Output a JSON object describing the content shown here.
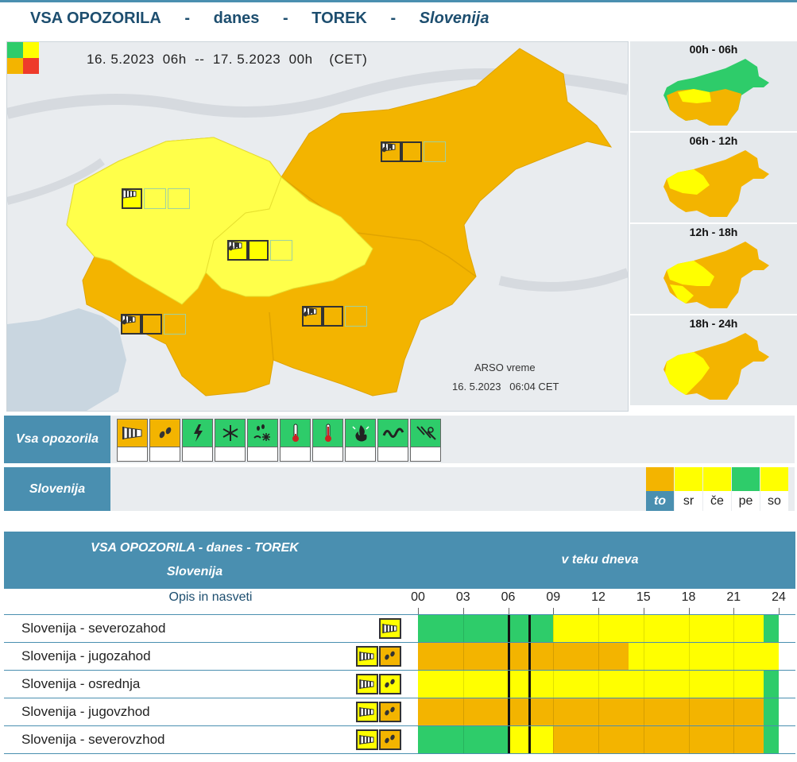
{
  "header": {
    "title": "VSA OPOZORILA",
    "sep": "-",
    "day_word": "danes",
    "weekday": "TOREK",
    "region": "Slovenija"
  },
  "map": {
    "date_range": "16. 5.2023  06h  --  17. 5.2023  00h    (CET)",
    "credit": "ARSO vreme",
    "issued": "16. 5.2023   06:04 CET"
  },
  "thumbnails": [
    {
      "label": "00h - 06h"
    },
    {
      "label": "06h - 12h"
    },
    {
      "label": "12h - 18h"
    },
    {
      "label": "18h - 24h"
    }
  ],
  "warning_types": {
    "label": "Vsa opozorila",
    "items": [
      {
        "icon": "wind-icon",
        "active": true
      },
      {
        "icon": "rain-icon",
        "active": true
      },
      {
        "icon": "thunderstorm-icon",
        "active": false
      },
      {
        "icon": "snow-icon",
        "active": false
      },
      {
        "icon": "snow-rain-icon",
        "active": false
      },
      {
        "icon": "low-temperature-icon",
        "active": false
      },
      {
        "icon": "high-temperature-icon",
        "active": false
      },
      {
        "icon": "fire-icon",
        "active": false
      },
      {
        "icon": "coastal-event-icon",
        "active": false
      },
      {
        "icon": "road-icon",
        "active": false
      }
    ]
  },
  "days_bar": {
    "label": "Slovenija",
    "days": [
      {
        "label": "to",
        "color": "#f3b400",
        "current": true
      },
      {
        "label": "sr",
        "color": "#ffff00",
        "current": false
      },
      {
        "label": "če",
        "color": "#ffff00",
        "current": false
      },
      {
        "label": "pe",
        "color": "#2ecc6a",
        "current": false
      },
      {
        "label": "so",
        "color": "#ffff00",
        "current": false
      }
    ]
  },
  "table": {
    "head_line1": "VSA OPOZORILA - danes - TOREK",
    "head_line2": "Slovenija",
    "head_right": "v teku dneva",
    "opis": "Opis in nasveti",
    "hours": [
      "00",
      "03",
      "06",
      "09",
      "12",
      "15",
      "18",
      "21",
      "24"
    ],
    "rows": [
      {
        "name": "Slovenija - severozahod",
        "icons": [
          "wind-icon"
        ],
        "segments": [
          {
            "from": 0,
            "to": 9,
            "color": "#2ecc6a"
          },
          {
            "from": 9,
            "to": 23,
            "color": "#ffff00"
          },
          {
            "from": 23,
            "to": 24,
            "color": "#2ecc6a"
          }
        ]
      },
      {
        "name": "Slovenija - jugozahod",
        "icons": [
          "wind-icon",
          "rain-icon"
        ],
        "segments": [
          {
            "from": 0,
            "to": 14,
            "color": "#f3b400"
          },
          {
            "from": 14,
            "to": 24,
            "color": "#ffff00"
          }
        ]
      },
      {
        "name": "Slovenija - osrednja",
        "icons": [
          "wind-icon",
          "rain-icon"
        ],
        "segments": [
          {
            "from": 0,
            "to": 23,
            "color": "#ffff00"
          },
          {
            "from": 23,
            "to": 24,
            "color": "#2ecc6a"
          }
        ]
      },
      {
        "name": "Slovenija - jugovzhod",
        "icons": [
          "wind-icon",
          "rain-icon"
        ],
        "segments": [
          {
            "from": 0,
            "to": 23,
            "color": "#f3b400"
          },
          {
            "from": 23,
            "to": 24,
            "color": "#2ecc6a"
          }
        ]
      },
      {
        "name": "Slovenija - severovzhod",
        "icons": [
          "wind-icon",
          "rain-icon"
        ],
        "segments": [
          {
            "from": 0,
            "to": 6,
            "color": "#2ecc6a"
          },
          {
            "from": 6,
            "to": 9,
            "color": "#ffff00"
          },
          {
            "from": 9,
            "to": 23,
            "color": "#f3b400"
          },
          {
            "from": 23,
            "to": 24,
            "color": "#2ecc6a"
          }
        ]
      }
    ]
  },
  "colors": {
    "green": "#2ecc6a",
    "yellow": "#ffff00",
    "orange": "#f3b400",
    "red": "#ee3b2b",
    "accent": "#4a8fb0"
  }
}
